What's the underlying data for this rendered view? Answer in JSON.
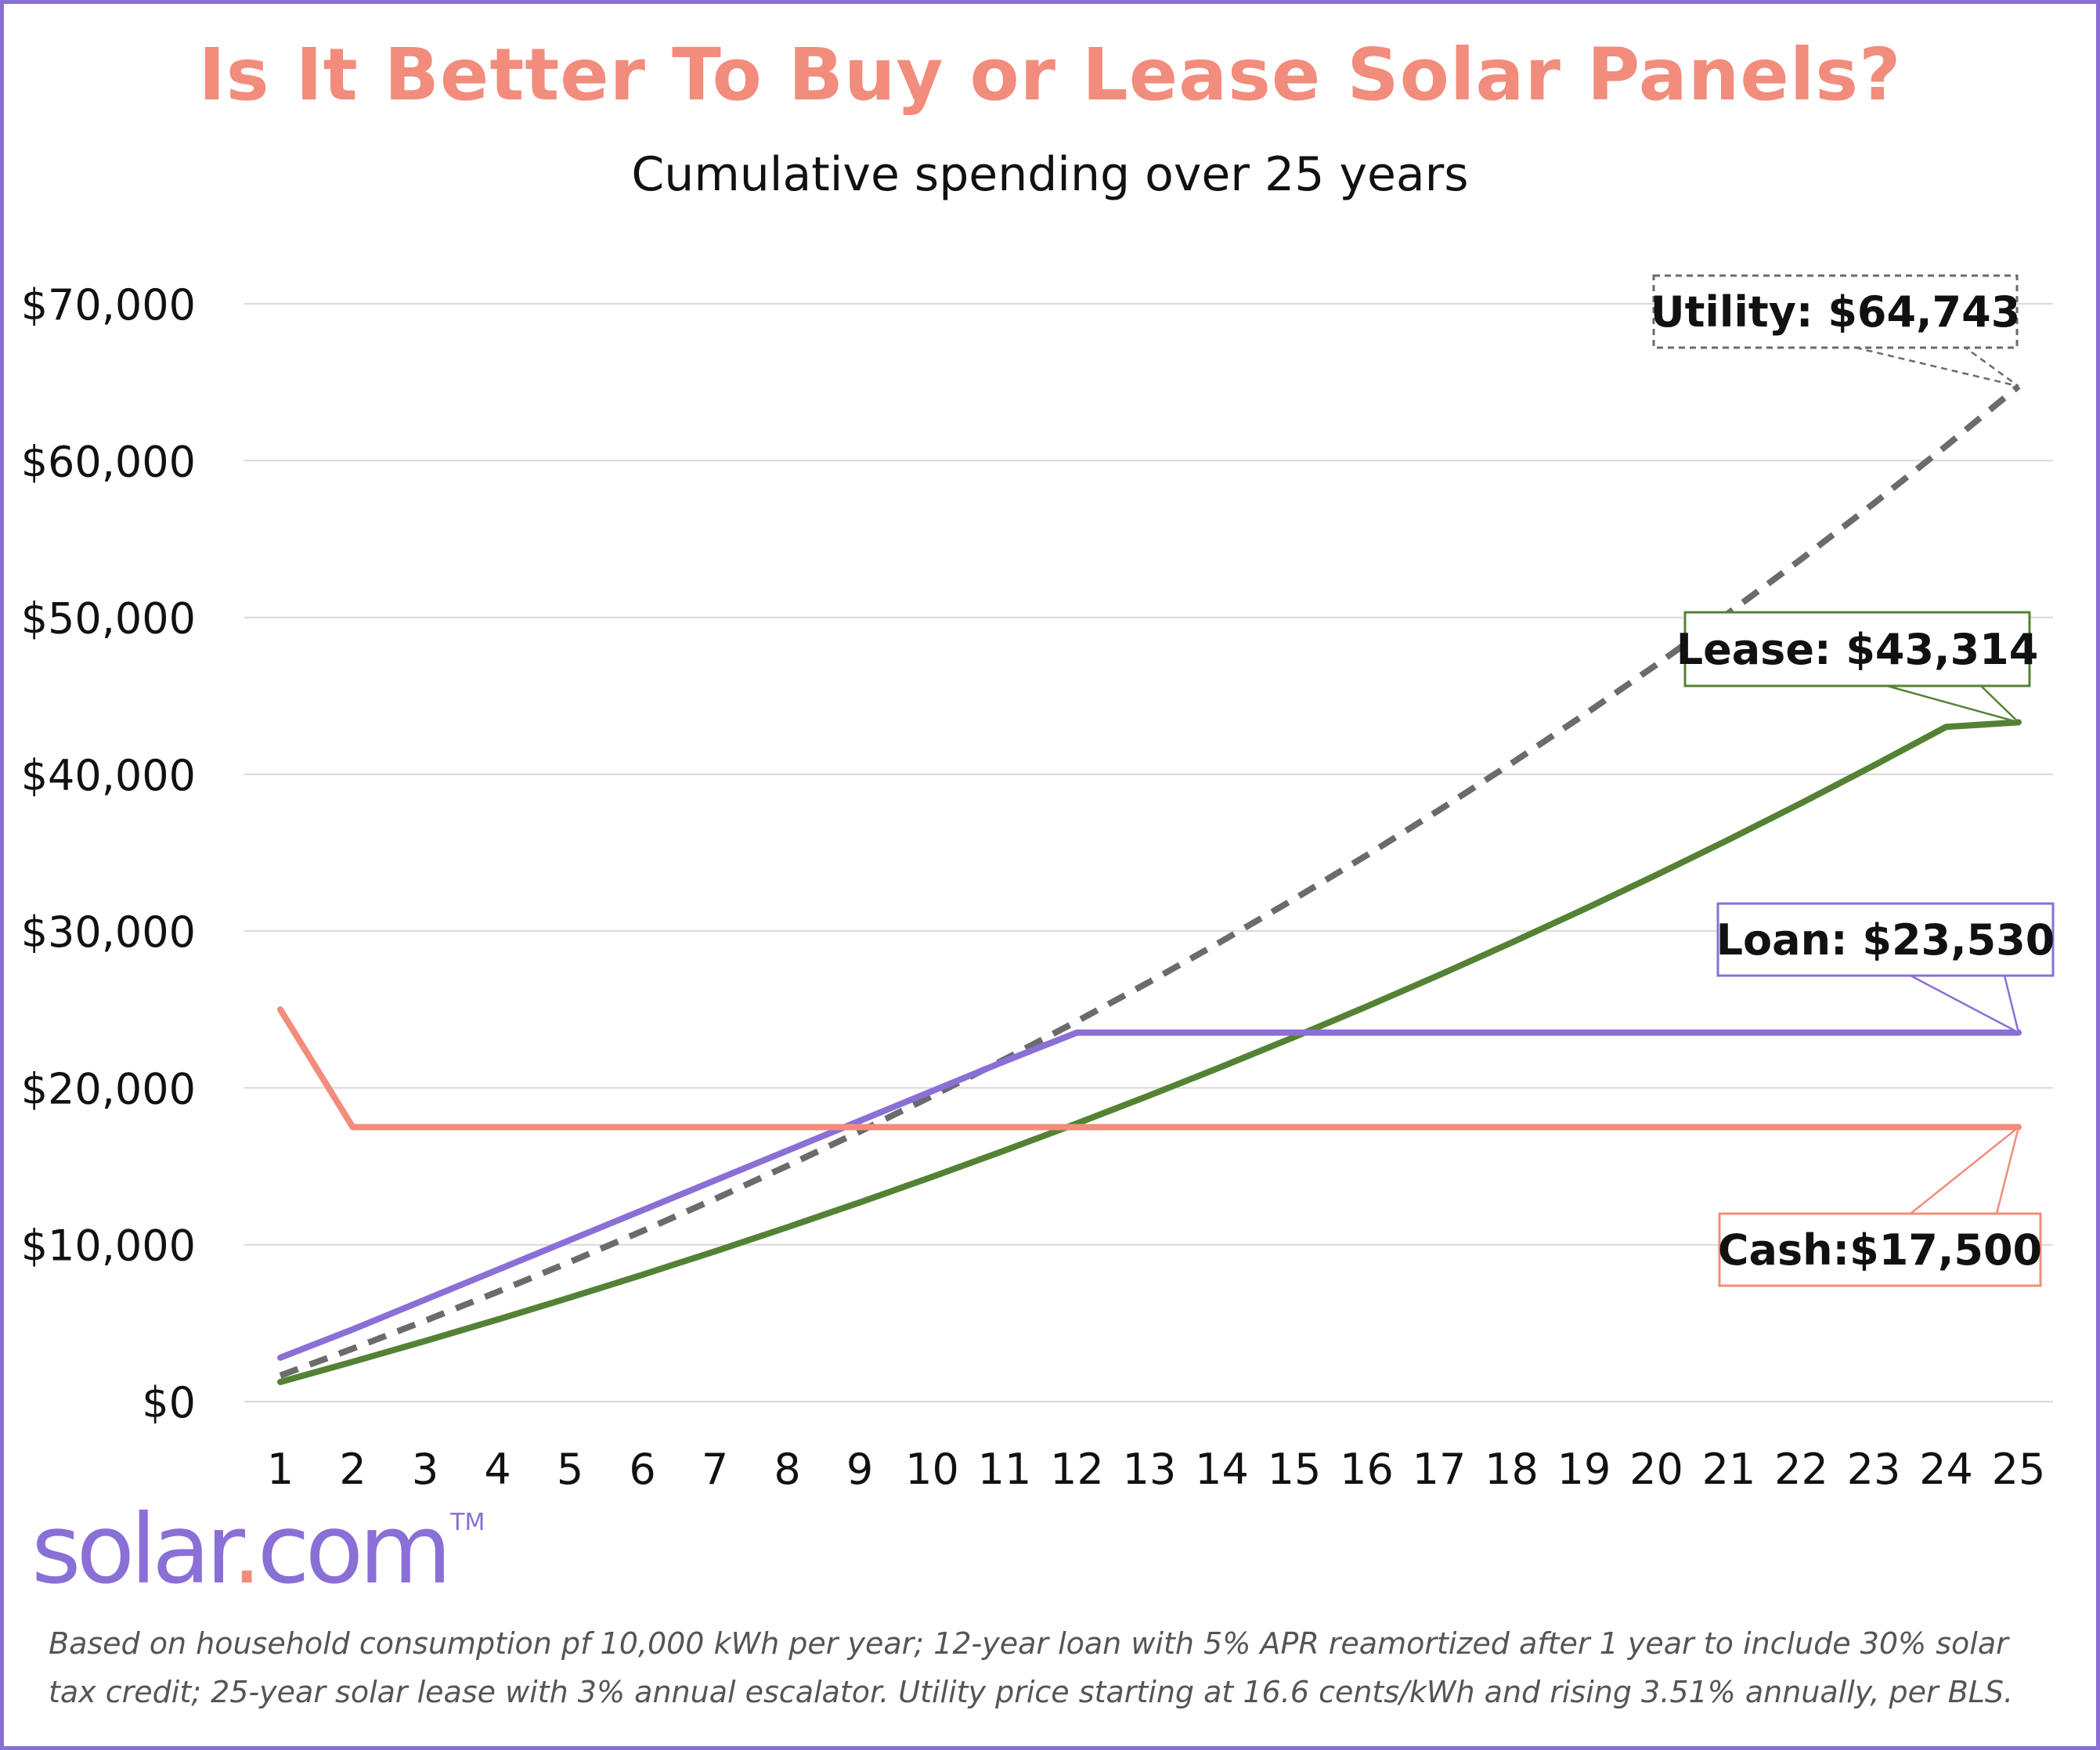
{
  "header": {
    "title": "Is It Better To Buy or Lease Solar Panels?",
    "subtitle": "Cumulative spending over 25 years"
  },
  "logo": {
    "word": "solar",
    "dot": ".",
    "tld": "com",
    "tm": "TM"
  },
  "footnote": "Based on household consumption pf 10,000 kWh per year; 12-year loan with 5% APR reamortized after 1 year to include 30% solar tax credit; 25-year solar lease with 3% annual escalator. Utility price starting at 16.6 cents/kWh and rising 3.51% annually, per BLS.",
  "colors": {
    "title": "#f28c7c",
    "utility": "#6b6b6b",
    "lease": "#548235",
    "loan": "#8a6fd6",
    "cash": "#f28c7c",
    "grid": "#d9d9d9",
    "border": "#8a6fd6"
  },
  "chart_data": {
    "type": "line",
    "title": "Is It Better To Buy or Lease Solar Panels?",
    "subtitle": "Cumulative spending over 25 years",
    "xlabel": "",
    "ylabel": "",
    "x": [
      1,
      2,
      3,
      4,
      5,
      6,
      7,
      8,
      9,
      10,
      11,
      12,
      13,
      14,
      15,
      16,
      17,
      18,
      19,
      20,
      21,
      22,
      23,
      24,
      25
    ],
    "ylim": [
      0,
      70000
    ],
    "yticks": [
      0,
      10000,
      20000,
      30000,
      40000,
      50000,
      60000,
      70000
    ],
    "ytick_labels": [
      "$0",
      "$10,000",
      "$20,000",
      "$30,000",
      "$40,000",
      "$50,000",
      "$60,000",
      "$70,000"
    ],
    "grid": true,
    "legend": "none",
    "series": [
      {
        "name": "Utility",
        "style": "dashed",
        "color": "#6b6b6b",
        "values": [
          1660,
          3378,
          5157,
          6998,
          8904,
          10876,
          12917,
          15031,
          17218,
          19482,
          21825,
          24251,
          26762,
          29361,
          32051,
          34836,
          37718,
          40701,
          43790,
          46987,
          50296,
          53721,
          57266,
          60936,
          64743
        ]
      },
      {
        "name": "Lease",
        "style": "solid",
        "color": "#548235",
        "values": [
          1250,
          2538,
          3864,
          5230,
          6637,
          8086,
          9578,
          11115,
          12698,
          14329,
          16009,
          17739,
          19521,
          21356,
          23246,
          25193,
          27198,
          29264,
          31391,
          33582,
          35839,
          38163,
          40557,
          43023,
          43314
        ]
      },
      {
        "name": "Loan",
        "style": "solid",
        "color": "#8a6fd6",
        "values": [
          2800,
          4600,
          6500,
          8400,
          10300,
          12200,
          14100,
          16000,
          17900,
          19800,
          21700,
          23530,
          23530,
          23530,
          23530,
          23530,
          23530,
          23530,
          23530,
          23530,
          23530,
          23530,
          23530,
          23530,
          23530
        ]
      },
      {
        "name": "Cash",
        "style": "solid",
        "color": "#f28c7c",
        "values": [
          25000,
          17500,
          17500,
          17500,
          17500,
          17500,
          17500,
          17500,
          17500,
          17500,
          17500,
          17500,
          17500,
          17500,
          17500,
          17500,
          17500,
          17500,
          17500,
          17500,
          17500,
          17500,
          17500,
          17500,
          17500
        ]
      }
    ],
    "annotations": [
      {
        "series": "Utility",
        "text": "Utility: $64,743",
        "border": "dashed",
        "color": "#6b6b6b",
        "placement": "above"
      },
      {
        "series": "Lease",
        "text": "Lease: $43,314",
        "border": "solid",
        "color": "#548235",
        "placement": "above"
      },
      {
        "series": "Loan",
        "text": "Loan: $23,530",
        "border": "solid",
        "color": "#8a6fd6",
        "placement": "above"
      },
      {
        "series": "Cash",
        "text": "Cash:$17,500",
        "border": "solid",
        "color": "#f28c7c",
        "placement": "below"
      }
    ]
  }
}
